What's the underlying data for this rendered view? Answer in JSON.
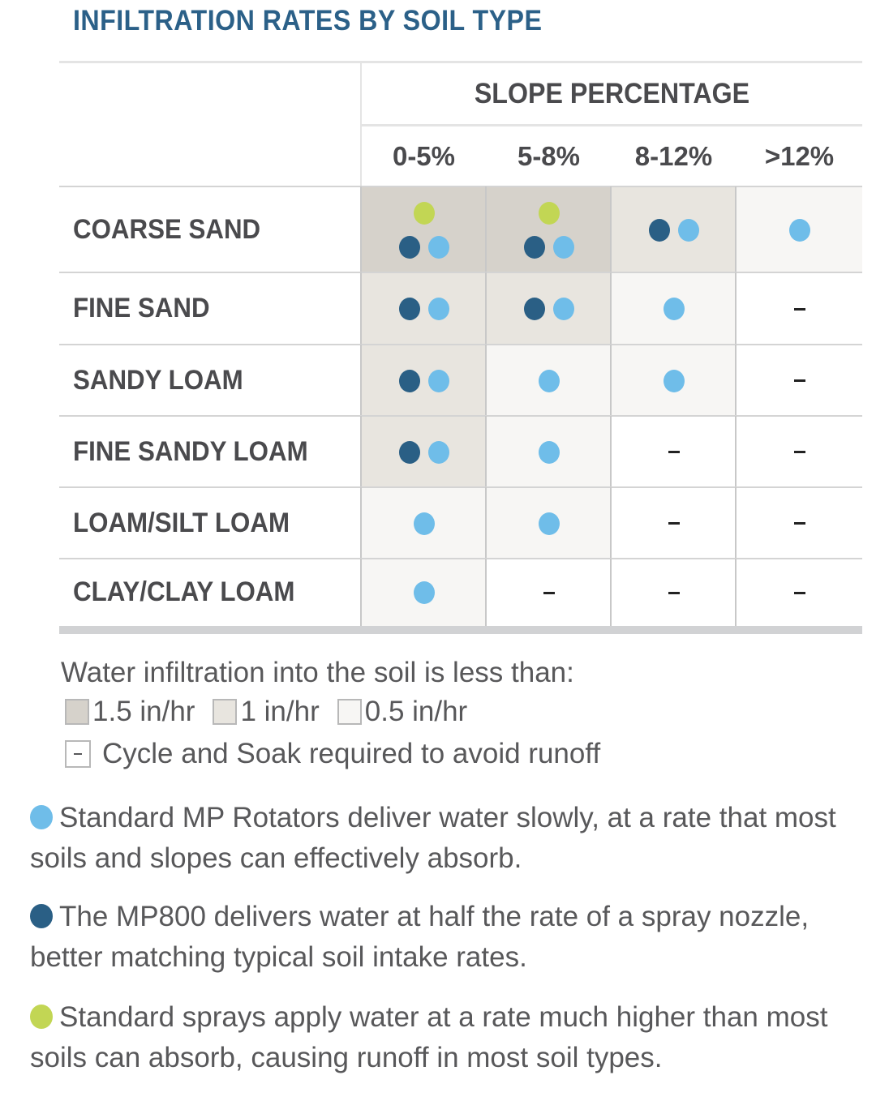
{
  "title": "INFILTRATION RATES BY SOIL TYPE",
  "colors": {
    "title": "#2b6088",
    "standard_mp": "#6fbde9",
    "mp800": "#2a5f85",
    "standard_spray": "#c2d654",
    "rate_1_5": "#d6d2cb",
    "rate_1": "#e8e5df",
    "rate_0_5": "#f7f6f4",
    "none": "#ffffff"
  },
  "header": {
    "group_label": "SLOPE PERCENTAGE",
    "columns": [
      "0-5%",
      "5-8%",
      "8-12%",
      ">12%"
    ]
  },
  "rows": [
    {
      "label": "COARSE SAND",
      "cells": [
        {
          "shade": "rate_1_5",
          "top": [
            "standard_spray"
          ],
          "dots": [
            "mp800",
            "standard_mp"
          ]
        },
        {
          "shade": "rate_1_5",
          "top": [
            "standard_spray"
          ],
          "dots": [
            "mp800",
            "standard_mp"
          ]
        },
        {
          "shade": "rate_1",
          "top": [],
          "dots": [
            "mp800",
            "standard_mp"
          ]
        },
        {
          "shade": "rate_0_5",
          "top": [],
          "dots": [
            "standard_mp"
          ]
        }
      ]
    },
    {
      "label": "FINE SAND",
      "cells": [
        {
          "shade": "rate_1",
          "top": [],
          "dots": [
            "mp800",
            "standard_mp"
          ]
        },
        {
          "shade": "rate_1",
          "top": [],
          "dots": [
            "mp800",
            "standard_mp"
          ]
        },
        {
          "shade": "rate_0_5",
          "top": [],
          "dots": [
            "standard_mp"
          ]
        },
        {
          "shade": "none",
          "top": [],
          "dots": [],
          "dash": true
        }
      ]
    },
    {
      "label": "SANDY LOAM",
      "cells": [
        {
          "shade": "rate_1",
          "top": [],
          "dots": [
            "mp800",
            "standard_mp"
          ]
        },
        {
          "shade": "rate_0_5",
          "top": [],
          "dots": [
            "standard_mp"
          ]
        },
        {
          "shade": "rate_0_5",
          "top": [],
          "dots": [
            "standard_mp"
          ]
        },
        {
          "shade": "none",
          "top": [],
          "dots": [],
          "dash": true
        }
      ]
    },
    {
      "label": "FINE SANDY LOAM",
      "cells": [
        {
          "shade": "rate_1",
          "top": [],
          "dots": [
            "mp800",
            "standard_mp"
          ]
        },
        {
          "shade": "rate_0_5",
          "top": [],
          "dots": [
            "standard_mp"
          ]
        },
        {
          "shade": "none",
          "top": [],
          "dots": [],
          "dash": true
        },
        {
          "shade": "none",
          "top": [],
          "dots": [],
          "dash": true
        }
      ]
    },
    {
      "label": "LOAM/SILT LOAM",
      "cells": [
        {
          "shade": "rate_0_5",
          "top": [],
          "dots": [
            "standard_mp"
          ]
        },
        {
          "shade": "rate_0_5",
          "top": [],
          "dots": [
            "standard_mp"
          ]
        },
        {
          "shade": "none",
          "top": [],
          "dots": [],
          "dash": true
        },
        {
          "shade": "none",
          "top": [],
          "dots": [],
          "dash": true
        }
      ]
    },
    {
      "label": "CLAY/CLAY LOAM",
      "cells": [
        {
          "shade": "rate_0_5",
          "top": [],
          "dots": [
            "standard_mp"
          ]
        },
        {
          "shade": "none",
          "top": [],
          "dots": [],
          "dash": true
        },
        {
          "shade": "none",
          "top": [],
          "dots": [],
          "dash": true
        },
        {
          "shade": "none",
          "top": [],
          "dots": [],
          "dash": true
        }
      ]
    }
  ],
  "legend": {
    "heading": "Water infiltration into the soil is less than:",
    "rates": [
      {
        "key": "rate_1_5",
        "label": "1.5 in/hr"
      },
      {
        "key": "rate_1",
        "label": "1 in/hr"
      },
      {
        "key": "rate_0_5",
        "label": "0.5 in/hr"
      }
    ],
    "cycle_soak": "Cycle and Soak required to avoid runoff"
  },
  "notes": [
    {
      "key": "standard_mp",
      "text": "Standard MP Rotators deliver water slowly, at a rate that most soils and slopes can effectively absorb."
    },
    {
      "key": "mp800",
      "text": "The MP800 delivers water at half the rate of a spray nozzle, better matching typical soil intake rates."
    },
    {
      "key": "standard_spray",
      "text": "Standard sprays apply water at a rate much higher than most soils can absorb, causing runoff in most soil types."
    }
  ],
  "chart_data": {
    "type": "table",
    "title": "INFILTRATION RATES BY SOIL TYPE",
    "column_group": "SLOPE PERCENTAGE",
    "columns": [
      "0-5%",
      "5-8%",
      "8-12%",
      ">12%"
    ],
    "rows": [
      "COARSE SAND",
      "FINE SAND",
      "SANDY LOAM",
      "FINE SANDY LOAM",
      "LOAM/SILT LOAM",
      "CLAY/CLAY LOAM"
    ],
    "infiltration_less_than_in_per_hr": [
      [
        1.5,
        1.5,
        1,
        0.5
      ],
      [
        1,
        1,
        0.5,
        null
      ],
      [
        1,
        0.5,
        0.5,
        null
      ],
      [
        1,
        0.5,
        null,
        null
      ],
      [
        0.5,
        0.5,
        null,
        null
      ],
      [
        0.5,
        null,
        null,
        null
      ]
    ],
    "suitable_products": [
      [
        [
          "Standard Spray",
          "MP800",
          "Standard MP Rotator"
        ],
        [
          "Standard Spray",
          "MP800",
          "Standard MP Rotator"
        ],
        [
          "MP800",
          "Standard MP Rotator"
        ],
        [
          "Standard MP Rotator"
        ]
      ],
      [
        [
          "MP800",
          "Standard MP Rotator"
        ],
        [
          "MP800",
          "Standard MP Rotator"
        ],
        [
          "Standard MP Rotator"
        ],
        [
          "Cycle and Soak"
        ]
      ],
      [
        [
          "MP800",
          "Standard MP Rotator"
        ],
        [
          "Standard MP Rotator"
        ],
        [
          "Standard MP Rotator"
        ],
        [
          "Cycle and Soak"
        ]
      ],
      [
        [
          "MP800",
          "Standard MP Rotator"
        ],
        [
          "Standard MP Rotator"
        ],
        [
          "Cycle and Soak"
        ],
        [
          "Cycle and Soak"
        ]
      ],
      [
        [
          "Standard MP Rotator"
        ],
        [
          "Standard MP Rotator"
        ],
        [
          "Cycle and Soak"
        ],
        [
          "Cycle and Soak"
        ]
      ],
      [
        [
          "Standard MP Rotator"
        ],
        [
          "Cycle and Soak"
        ],
        [
          "Cycle and Soak"
        ],
        [
          "Cycle and Soak"
        ]
      ]
    ],
    "legend": [
      "1.5 in/hr",
      "1 in/hr",
      "0.5 in/hr",
      "Cycle and Soak required to avoid runoff",
      "Standard MP Rotators",
      "MP800",
      "Standard sprays"
    ]
  }
}
